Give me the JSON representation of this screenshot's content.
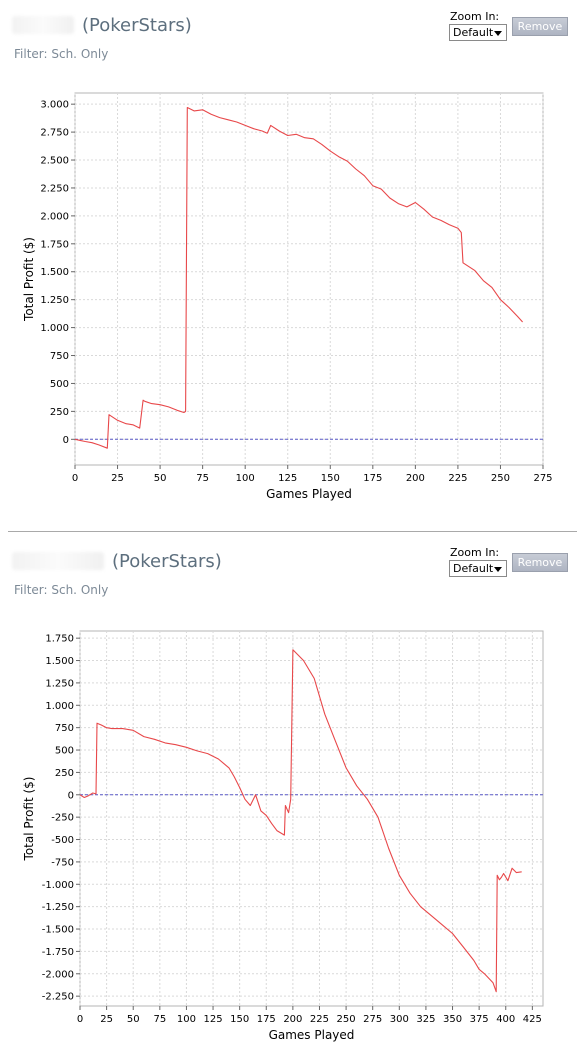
{
  "panels": [
    {
      "site": "(PokerStars)",
      "filter": "Filter: Sch. Only",
      "zoom": {
        "label": "Zoom In:",
        "value": "Default"
      },
      "remove_label": "Remove"
    },
    {
      "site": "(PokerStars)",
      "filter": "Filter: Sch. Only",
      "zoom": {
        "label": "Zoom In:",
        "value": "Default"
      },
      "remove_label": "Remove"
    }
  ],
  "colors": {
    "series": "#e8484a",
    "zero_line": "#5a5ac8",
    "grid": "#d9d9d9",
    "plot_border": "#b5b5b5"
  },
  "chart_data": [
    {
      "type": "line",
      "xlabel": "Games Played",
      "ylabel": "Total Profit ($)",
      "xlim": [
        0,
        275
      ],
      "ylim": [
        -230,
        3100
      ],
      "xticks": [
        0,
        25,
        50,
        75,
        100,
        125,
        150,
        175,
        200,
        225,
        250,
        275
      ],
      "xtick_labels": [
        "0",
        "25",
        "50",
        "75",
        "100",
        "125",
        "150",
        "175",
        "200",
        "225",
        "250",
        "275"
      ],
      "yticks": [
        0,
        250,
        500,
        750,
        1000,
        1250,
        1500,
        1750,
        2000,
        2250,
        2500,
        2750,
        3000
      ],
      "ytick_labels": [
        "0",
        "250",
        "500",
        "750",
        "1.000",
        "1.250",
        "1.500",
        "1.750",
        "2.000",
        "2.250",
        "2.500",
        "2.750",
        "3.000"
      ],
      "grid": true,
      "zero_line": true,
      "series": [
        {
          "x": [
            0,
            3,
            6,
            10,
            14,
            19,
            20,
            21,
            25,
            30,
            34,
            38,
            40,
            41,
            45,
            50,
            55,
            60,
            64,
            65,
            66,
            70,
            75,
            80,
            85,
            90,
            95,
            100,
            105,
            110,
            113,
            115,
            120,
            125,
            130,
            135,
            140,
            145,
            150,
            155,
            160,
            165,
            170,
            175,
            180,
            185,
            190,
            195,
            200,
            205,
            210,
            215,
            220,
            225,
            227,
            228,
            235,
            240,
            245,
            250,
            255,
            260,
            263
          ],
          "y": [
            0,
            -10,
            -20,
            -30,
            -50,
            -80,
            220,
            210,
            170,
            140,
            130,
            100,
            350,
            340,
            320,
            310,
            290,
            260,
            240,
            250,
            2970,
            2940,
            2950,
            2910,
            2880,
            2860,
            2840,
            2810,
            2780,
            2760,
            2740,
            2810,
            2760,
            2720,
            2730,
            2700,
            2690,
            2640,
            2580,
            2530,
            2490,
            2420,
            2360,
            2270,
            2240,
            2160,
            2110,
            2080,
            2120,
            2060,
            1990,
            1960,
            1920,
            1890,
            1850,
            1580,
            1510,
            1420,
            1360,
            1250,
            1180,
            1100,
            1050
          ]
        }
      ]
    },
    {
      "type": "line",
      "xlabel": "Games Played",
      "ylabel": "Total Profit ($)",
      "xlim": [
        0,
        435
      ],
      "ylim": [
        -2360,
        1830
      ],
      "xticks": [
        0,
        25,
        50,
        75,
        100,
        125,
        150,
        175,
        200,
        225,
        250,
        275,
        300,
        325,
        350,
        375,
        400,
        425
      ],
      "xtick_labels": [
        "0",
        "25",
        "50",
        "75",
        "100",
        "125",
        "150",
        "175",
        "200",
        "225",
        "250",
        "275",
        "300",
        "325",
        "350",
        "375",
        "400",
        "425"
      ],
      "yticks": [
        1750,
        1500,
        1250,
        1000,
        750,
        500,
        250,
        0,
        -250,
        -500,
        -750,
        -1000,
        -1250,
        -1500,
        -1750,
        -2000,
        -2250
      ],
      "ytick_labels": [
        "1.750",
        "1.500",
        "1.250",
        "1.000",
        "750",
        "500",
        "250",
        "0",
        "-250",
        "-500",
        "-750",
        "-1.000",
        "-1.250",
        "-1.500",
        "-1.750",
        "-2.000",
        "-2.250"
      ],
      "grid": true,
      "zero_line": true,
      "series": [
        {
          "x": [
            0,
            4,
            8,
            12,
            15,
            16,
            20,
            25,
            30,
            40,
            50,
            60,
            70,
            80,
            90,
            100,
            110,
            120,
            130,
            140,
            145,
            150,
            155,
            160,
            165,
            170,
            175,
            180,
            185,
            192,
            193,
            196,
            198,
            200,
            210,
            220,
            230,
            240,
            250,
            260,
            270,
            280,
            290,
            300,
            310,
            320,
            330,
            340,
            350,
            360,
            370,
            375,
            380,
            388,
            391,
            392,
            394,
            396,
            398,
            402,
            406,
            410,
            415
          ],
          "y": [
            0,
            -30,
            -10,
            20,
            10,
            800,
            780,
            750,
            740,
            740,
            720,
            650,
            620,
            580,
            560,
            530,
            490,
            460,
            400,
            300,
            200,
            80,
            -50,
            -120,
            0,
            -180,
            -230,
            -320,
            -400,
            -450,
            -120,
            -200,
            -50,
            1620,
            1500,
            1300,
            900,
            600,
            300,
            100,
            -50,
            -250,
            -600,
            -900,
            -1100,
            -1250,
            -1350,
            -1450,
            -1550,
            -1700,
            -1850,
            -1950,
            -2000,
            -2100,
            -2200,
            -900,
            -950,
            -920,
            -880,
            -960,
            -820,
            -870,
            -860
          ]
        }
      ]
    }
  ]
}
